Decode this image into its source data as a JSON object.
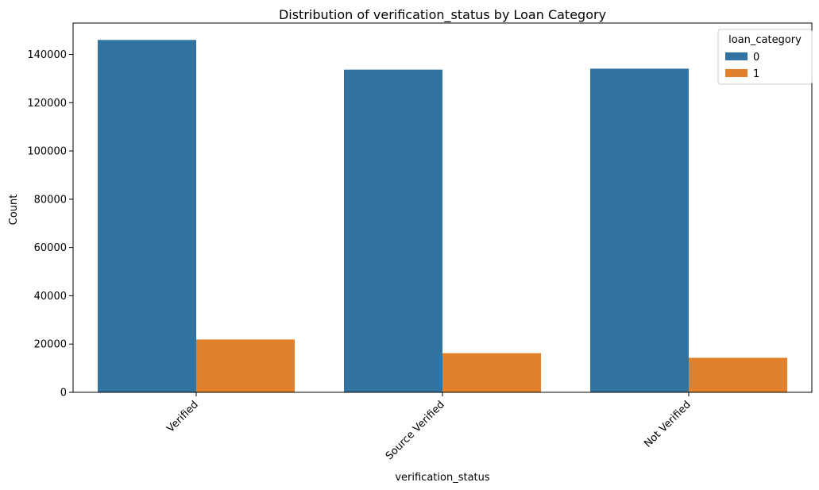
{
  "chart_data": {
    "type": "bar",
    "title": "Distribution of verification_status by Loan Category",
    "xlabel": "verification_status",
    "ylabel": "Count",
    "categories": [
      "Verified",
      "Source Verified",
      "Not Verified"
    ],
    "series": [
      {
        "name": "0",
        "values": [
          146000,
          133700,
          134100
        ],
        "color": "#3274a1"
      },
      {
        "name": "1",
        "values": [
          21900,
          16200,
          14300
        ],
        "color": "#e1812c"
      }
    ],
    "ylim": [
      0,
      153000
    ],
    "yticks": [
      0,
      20000,
      40000,
      60000,
      80000,
      100000,
      120000,
      140000
    ],
    "grid": false,
    "legend": {
      "title": "loan_category",
      "placement": "top-right"
    }
  }
}
